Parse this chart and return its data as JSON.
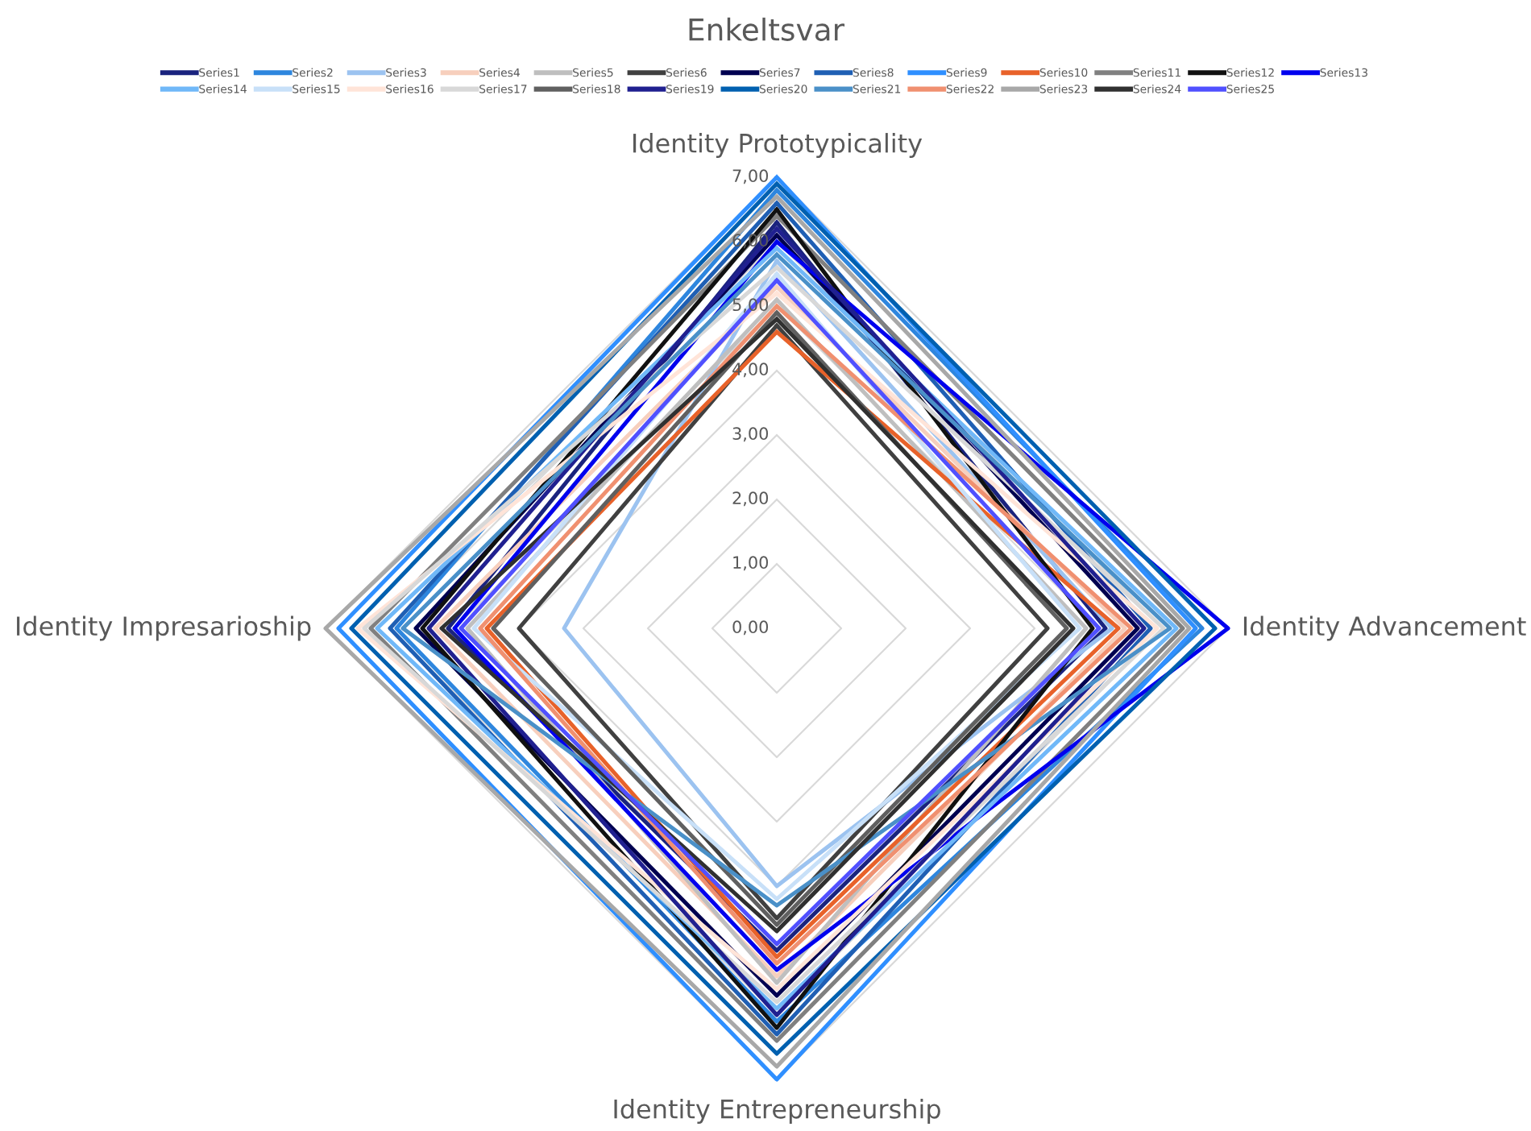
{
  "chart_data": {
    "type": "radar",
    "title": "Enkeltsvar",
    "categories": [
      "Identity Prototypicality",
      "Identity Advancement",
      "Identity Entrepreneurship",
      "Identity Impresarioship"
    ],
    "ylim": [
      0,
      7
    ],
    "yticks": [
      {
        "value": 0,
        "label": "0,00"
      },
      {
        "value": 1,
        "label": "1,00"
      },
      {
        "value": 2,
        "label": "2,00"
      },
      {
        "value": 3,
        "label": "3,00"
      },
      {
        "value": 4,
        "label": "4,00"
      },
      {
        "value": 5,
        "label": "5,00"
      },
      {
        "value": 6,
        "label": "6,00"
      },
      {
        "value": 7,
        "label": "7,00"
      }
    ],
    "grid": true,
    "legend": "top",
    "marker": "none",
    "line_style": "solid",
    "series": [
      {
        "name": "Series1",
        "color": "#1a237e",
        "values": [
          6.3,
          5.1,
          5.0,
          5.1
        ]
      },
      {
        "name": "Series2",
        "color": "#2e86de",
        "values": [
          6.8,
          6.6,
          6.1,
          5.9
        ]
      },
      {
        "name": "Series3",
        "color": "#9cc3f0",
        "values": [
          5.7,
          5.2,
          4.0,
          3.3
        ]
      },
      {
        "name": "Series4",
        "color": "#f7cfbd",
        "values": [
          5.3,
          5.4,
          5.4,
          5.3
        ]
      },
      {
        "name": "Series5",
        "color": "#bfbfbf",
        "values": [
          5.1,
          4.8,
          5.5,
          4.8
        ]
      },
      {
        "name": "Series6",
        "color": "#404040",
        "values": [
          4.7,
          4.2,
          4.5,
          4.0
        ]
      },
      {
        "name": "Series7",
        "color": "#000050",
        "values": [
          6.1,
          5.6,
          5.7,
          5.6
        ]
      },
      {
        "name": "Series8",
        "color": "#1f5fb4",
        "values": [
          6.6,
          5.8,
          6.3,
          6.0
        ]
      },
      {
        "name": "Series9",
        "color": "#2f8fff",
        "values": [
          7.0,
          6.5,
          7.0,
          6.8
        ]
      },
      {
        "name": "Series10",
        "color": "#e8622a",
        "values": [
          4.6,
          5.3,
          5.1,
          4.5
        ]
      },
      {
        "name": "Series11",
        "color": "#808080",
        "values": [
          6.4,
          6.3,
          6.4,
          6.3
        ]
      },
      {
        "name": "Series12",
        "color": "#111111",
        "values": [
          6.5,
          4.9,
          6.2,
          5.5
        ]
      },
      {
        "name": "Series13",
        "color": "#0000ee",
        "values": [
          6.0,
          7.0,
          5.3,
          5.0
        ]
      },
      {
        "name": "Series14",
        "color": "#70b8f8",
        "values": [
          5.9,
          6.2,
          5.9,
          6.2
        ]
      },
      {
        "name": "Series15",
        "color": "#c8e0f8",
        "values": [
          5.5,
          4.7,
          4.2,
          4.7
        ]
      },
      {
        "name": "Series16",
        "color": "#ffe4d8",
        "values": [
          5.2,
          5.9,
          5.6,
          6.5
        ]
      },
      {
        "name": "Series17",
        "color": "#d8d8d8",
        "values": [
          5.6,
          6.0,
          5.8,
          6.4
        ]
      },
      {
        "name": "Series18",
        "color": "#606060",
        "values": [
          4.9,
          4.5,
          4.6,
          4.4
        ]
      },
      {
        "name": "Series19",
        "color": "#202090",
        "values": [
          6.2,
          5.7,
          6.0,
          5.4
        ]
      },
      {
        "name": "Series20",
        "color": "#0060b0",
        "values": [
          6.9,
          6.8,
          6.6,
          6.6
        ]
      },
      {
        "name": "Series21",
        "color": "#4a90c8",
        "values": [
          5.8,
          6.1,
          4.3,
          5.8
        ]
      },
      {
        "name": "Series22",
        "color": "#f09070",
        "values": [
          5.0,
          5.5,
          5.2,
          4.6
        ]
      },
      {
        "name": "Series23",
        "color": "#a8a8a8",
        "values": [
          6.7,
          6.4,
          6.8,
          7.0
        ]
      },
      {
        "name": "Series24",
        "color": "#303030",
        "values": [
          4.8,
          4.6,
          4.7,
          5.2
        ]
      },
      {
        "name": "Series25",
        "color": "#5050ff",
        "values": [
          5.4,
          5.0,
          4.9,
          4.9
        ]
      }
    ]
  }
}
